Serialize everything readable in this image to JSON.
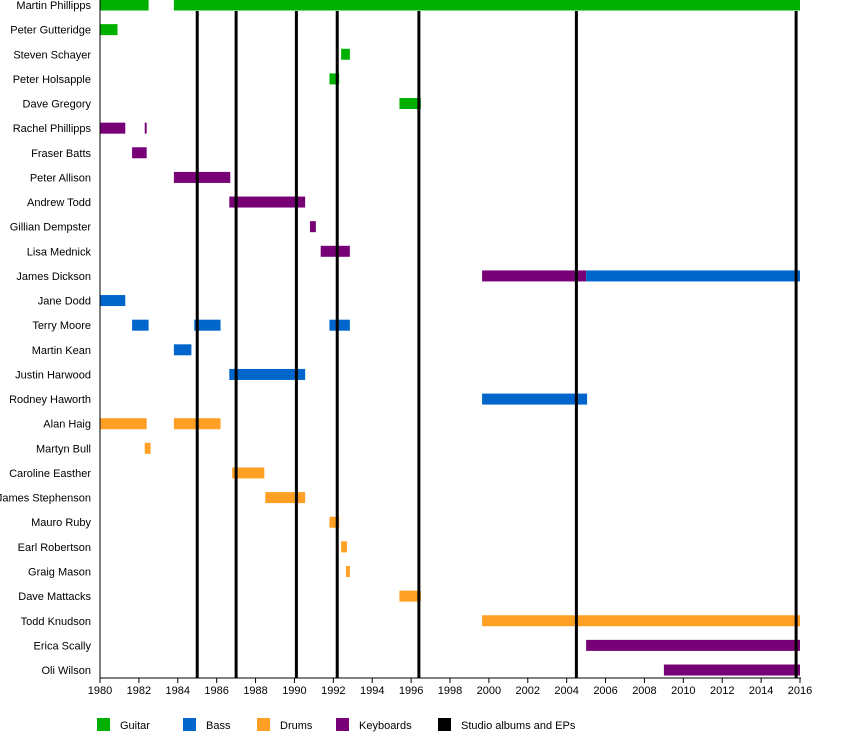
{
  "chart_data": {
    "type": "timeline",
    "title": "",
    "xlabel": "",
    "ylabel": "",
    "xlim": [
      1980,
      2016
    ],
    "x_ticks": [
      "1980",
      "1982",
      "1984",
      "1986",
      "1988",
      "1990",
      "1992",
      "1994",
      "1996",
      "1998",
      "2000",
      "2002",
      "2004",
      "2006",
      "2008",
      "2010",
      "2012",
      "2014",
      "2016"
    ],
    "colors": {
      "Guitar": "#00b000",
      "Bass": "#0066cc",
      "Drums": "#ffa024",
      "Keyboards": "#770077",
      "Studio albums and EPs": "#000000"
    },
    "legend": [
      "Guitar",
      "Bass",
      "Drums",
      "Keyboards",
      "Studio albums and EPs"
    ],
    "legend_position": "bottom",
    "album_years": [
      1985.0,
      1987.0,
      1990.1,
      1992.2,
      1996.4,
      2004.5,
      2015.8
    ],
    "members": [
      {
        "name": "Martin Phillipps",
        "spans": [
          {
            "role": "Guitar",
            "start": 1980,
            "end": 1982.5
          },
          {
            "role": "Guitar",
            "start": 1983.8,
            "end": 2016
          }
        ]
      },
      {
        "name": "Peter Gutteridge",
        "spans": [
          {
            "role": "Guitar",
            "start": 1980,
            "end": 1980.9
          }
        ]
      },
      {
        "name": "Steven Schayer",
        "spans": [
          {
            "role": "Guitar",
            "start": 1992.4,
            "end": 1992.85
          }
        ]
      },
      {
        "name": "Peter Holsapple",
        "spans": [
          {
            "role": "Guitar",
            "start": 1991.8,
            "end": 1992.3
          }
        ]
      },
      {
        "name": "Dave Gregory",
        "spans": [
          {
            "role": "Guitar",
            "start": 1995.4,
            "end": 1996.5
          }
        ]
      },
      {
        "name": "Rachel Phillipps",
        "spans": [
          {
            "role": "Keyboards",
            "start": 1980,
            "end": 1981.3
          },
          {
            "role": "Keyboards",
            "start": 1982.3,
            "end": 1982.4
          }
        ]
      },
      {
        "name": "Fraser Batts",
        "spans": [
          {
            "role": "Keyboards",
            "start": 1981.65,
            "end": 1982.4
          }
        ]
      },
      {
        "name": "Peter Allison",
        "spans": [
          {
            "role": "Keyboards",
            "start": 1983.8,
            "end": 1986.7
          }
        ]
      },
      {
        "name": "Andrew Todd",
        "spans": [
          {
            "role": "Keyboards",
            "start": 1986.65,
            "end": 1990.55
          }
        ]
      },
      {
        "name": "Gillian Dempster",
        "spans": [
          {
            "role": "Keyboards",
            "start": 1990.8,
            "end": 1991.1
          }
        ]
      },
      {
        "name": "Lisa Mednick",
        "spans": [
          {
            "role": "Keyboards",
            "start": 1991.35,
            "end": 1992.85
          }
        ]
      },
      {
        "name": "James Dickson",
        "spans": [
          {
            "role": "Keyboards",
            "start": 1999.65,
            "end": 2005
          },
          {
            "role": "Bass",
            "start": 2005,
            "end": 2016
          }
        ]
      },
      {
        "name": "Jane Dodd",
        "spans": [
          {
            "role": "Bass",
            "start": 1980,
            "end": 1981.3
          }
        ]
      },
      {
        "name": "Terry Moore",
        "spans": [
          {
            "role": "Bass",
            "start": 1981.65,
            "end": 1982.5
          },
          {
            "role": "Bass",
            "start": 1984.85,
            "end": 1986.2
          },
          {
            "role": "Bass",
            "start": 1991.8,
            "end": 1992.85
          }
        ]
      },
      {
        "name": "Martin Kean",
        "spans": [
          {
            "role": "Bass",
            "start": 1983.8,
            "end": 1984.7
          }
        ]
      },
      {
        "name": "Justin Harwood",
        "spans": [
          {
            "role": "Bass",
            "start": 1986.65,
            "end": 1990.55
          }
        ]
      },
      {
        "name": "Rodney Haworth",
        "spans": [
          {
            "role": "Bass",
            "start": 1999.65,
            "end": 2005.05
          }
        ]
      },
      {
        "name": "Alan Haig",
        "spans": [
          {
            "role": "Drums",
            "start": 1980,
            "end": 1982.4
          },
          {
            "role": "Drums",
            "start": 1983.8,
            "end": 1986.2
          }
        ]
      },
      {
        "name": "Martyn Bull",
        "spans": [
          {
            "role": "Drums",
            "start": 1982.3,
            "end": 1982.6
          }
        ]
      },
      {
        "name": "Caroline Easther",
        "spans": [
          {
            "role": "Drums",
            "start": 1986.8,
            "end": 1988.45
          }
        ]
      },
      {
        "name": "James Stephenson",
        "spans": [
          {
            "role": "Drums",
            "start": 1988.5,
            "end": 1990.55
          }
        ]
      },
      {
        "name": "Mauro Ruby",
        "spans": [
          {
            "role": "Drums",
            "start": 1991.8,
            "end": 1992.3
          }
        ]
      },
      {
        "name": "Earl Robertson",
        "spans": [
          {
            "role": "Drums",
            "start": 1992.4,
            "end": 1992.7
          }
        ]
      },
      {
        "name": "Graig Mason",
        "spans": [
          {
            "role": "Drums",
            "start": 1992.65,
            "end": 1992.85
          }
        ]
      },
      {
        "name": "Dave Mattacks",
        "spans": [
          {
            "role": "Drums",
            "start": 1995.4,
            "end": 1996.5
          }
        ]
      },
      {
        "name": "Todd Knudson",
        "spans": [
          {
            "role": "Drums",
            "start": 1999.65,
            "end": 2016
          }
        ]
      },
      {
        "name": "Erica Scally",
        "spans": [
          {
            "role": "Keyboards",
            "start": 2005,
            "end": 2016
          }
        ]
      },
      {
        "name": "Oli Wilson",
        "spans": [
          {
            "role": "Keyboards",
            "start": 2009,
            "end": 2016
          }
        ]
      }
    ]
  }
}
